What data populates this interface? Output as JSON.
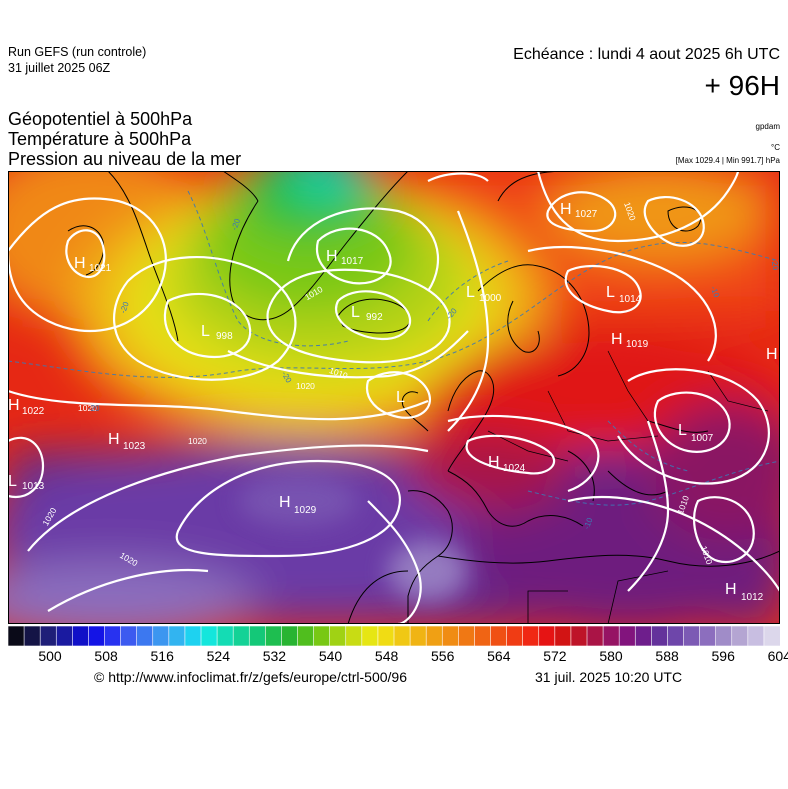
{
  "header": {
    "run_title": "Run GEFS (run controle)",
    "run_date": "31 juillet 2025 06Z",
    "valid_time": "Echéance : lundi 4 aout 2025 6h UTC",
    "lead_time": "+ 96H"
  },
  "fields": {
    "line1": "Géopotentiel à 500hPa",
    "line2": "Température à 500hPa",
    "line3": "Pression au niveau de la mer",
    "unit_geopotential": "gpdam",
    "unit_temperature": "°C",
    "minmax": "[Max 1029.4 | Min 991.7] hPa"
  },
  "map": {
    "pressure_centers": [
      {
        "type": "H",
        "value": "1021"
      },
      {
        "type": "H",
        "value": "1017"
      },
      {
        "type": "L",
        "value": "992"
      },
      {
        "type": "L",
        "value": "998"
      },
      {
        "type": "L",
        "value": "1000"
      },
      {
        "type": "H",
        "value": "1027"
      },
      {
        "type": "L",
        "value": "1014"
      },
      {
        "type": "H",
        "value": "1019"
      },
      {
        "type": "H",
        "value": "1022"
      },
      {
        "type": "H",
        "value": "1023"
      },
      {
        "type": "L",
        "value": "1013"
      },
      {
        "type": "H",
        "value": "1029"
      },
      {
        "type": "H",
        "value": "1024"
      },
      {
        "type": "L",
        "value": "1007"
      },
      {
        "type": "H",
        "value": "1012"
      },
      {
        "type": "L",
        "value": ""
      },
      {
        "type": "H",
        "value": ""
      }
    ],
    "isobar_labels": [
      "1020",
      "1020",
      "1020",
      "1020",
      "1010",
      "1010",
      "1020",
      "1010",
      "1010",
      "1020"
    ],
    "isotherm_labels": [
      "-20",
      "-20",
      "-20",
      "-20",
      "-20",
      "-20",
      "-10",
      "-10"
    ]
  },
  "colorbar": {
    "ticks": [
      "500",
      "508",
      "516",
      "524",
      "532",
      "540",
      "548",
      "556",
      "564",
      "572",
      "580",
      "588",
      "596",
      "604"
    ],
    "colors": [
      "#0a0a18",
      "#141446",
      "#1e1e78",
      "#1a1aa0",
      "#1010c8",
      "#1414e6",
      "#2832f0",
      "#3c5af0",
      "#3c78f0",
      "#3c96f0",
      "#32b4f0",
      "#1ed2f0",
      "#14e6dc",
      "#14dcb4",
      "#14d296",
      "#14c878",
      "#1ebe50",
      "#28b432",
      "#50be1e",
      "#78c814",
      "#a0d214",
      "#c8dc14",
      "#e6e614",
      "#f0dc14",
      "#f0c814",
      "#f0b414",
      "#f0a014",
      "#f08c14",
      "#f07814",
      "#f06414",
      "#f05014",
      "#f03c14",
      "#f02814",
      "#e61414",
      "#d21414",
      "#be1428",
      "#aa1446",
      "#961464",
      "#82147d",
      "#6e1e8c",
      "#64329b",
      "#6e46aa",
      "#7c5ab4",
      "#8c6ebe",
      "#a08cc8",
      "#b4a5d2",
      "#c8bee1",
      "#dcd7eb"
    ]
  },
  "footer": {
    "copyright": "© http://www.infoclimat.fr/z/gefs/europe/ctrl-500/96",
    "generated": "31 juil. 2025 10:20 UTC"
  }
}
